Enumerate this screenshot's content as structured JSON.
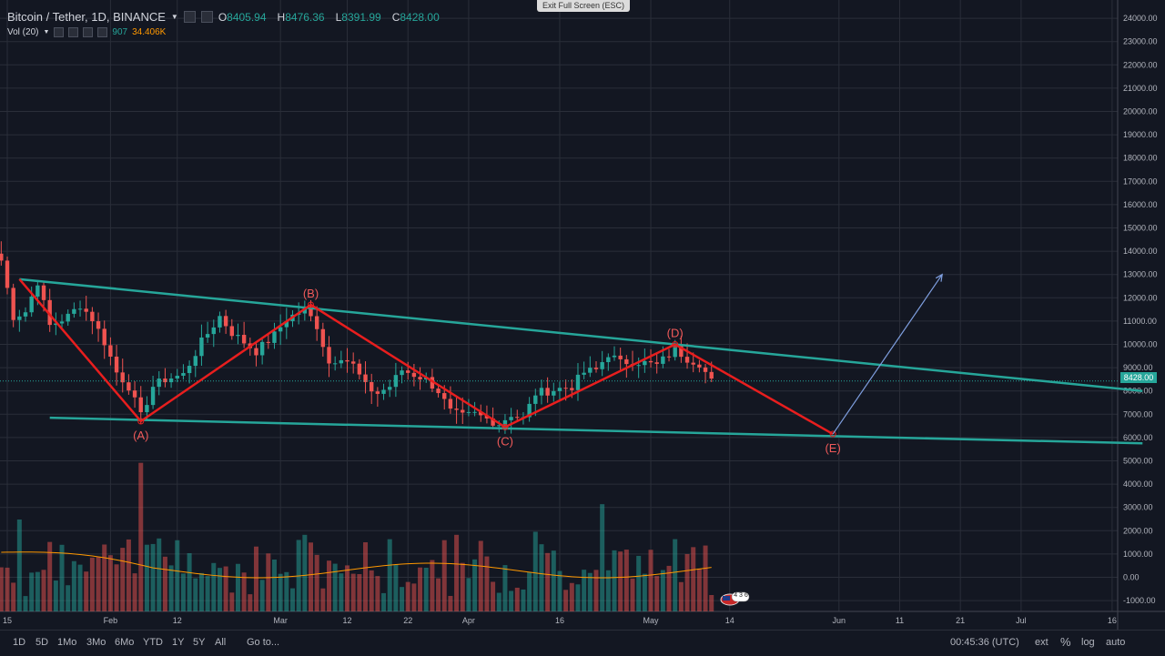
{
  "header": {
    "symbol": "Bitcoin / Tether, 1D, BINANCE",
    "o_label": "O",
    "o": "8405.94",
    "h_label": "H",
    "h": "8476.36",
    "l_label": "L",
    "l": "8391.99",
    "c_label": "C",
    "c": "8428.00",
    "vol_label": "Vol (20)",
    "vol_value": "907",
    "vol_ma": "34.406K",
    "exit_fullscreen": "Exit Full Screen (ESC)"
  },
  "current_price_label": "8428.00",
  "bottom_bar": {
    "ranges": [
      "1D",
      "5D",
      "1Mo",
      "3Mo",
      "6Mo",
      "YTD",
      "1Y",
      "5Y",
      "All"
    ],
    "goto": "Go to...",
    "clock": "00:45:36 (UTC)",
    "ext": "ext",
    "percent": "%",
    "log": "log",
    "auto": "auto"
  },
  "flag_badge": "4 3 6",
  "colors": {
    "background": "#131722",
    "grid": "#2a2e39",
    "up": "#26a69a",
    "down": "#ef5350",
    "trendline": "#26a69a",
    "wave": "#e81e1e",
    "projection": "#7f9fe0",
    "vol_ma": "#ff9800"
  },
  "chart_data": {
    "type": "candlestick",
    "title": "Bitcoin / Tether, 1D, BINANCE",
    "ylim": [
      -1500,
      24500
    ],
    "y_ticks": [
      24000,
      23000,
      22000,
      21000,
      20000,
      19000,
      18000,
      17000,
      16000,
      15000,
      14000,
      13000,
      12000,
      11000,
      10000,
      9000,
      8000,
      7000,
      6000,
      5000,
      4000,
      3000,
      2000,
      1000,
      0,
      -1000
    ],
    "y_tick_labels": [
      "24000.00",
      "23000.00",
      "22000.00",
      "21000.00",
      "20000.00",
      "19000.00",
      "18000.00",
      "17000.00",
      "16000.00",
      "15000.00",
      "14000.00",
      "13000.00",
      "12000.00",
      "11000.00",
      "10000.00",
      "9000.00",
      "8000.00",
      "7000.00",
      "6000.00",
      "5000.00",
      "4000.00",
      "3000.00",
      "2000.00",
      "1000.00",
      "0.00",
      "-1000.00"
    ],
    "x_ticks": [
      {
        "label": "15",
        "date": "2018-01-15"
      },
      {
        "label": "Feb",
        "date": "2018-02-01"
      },
      {
        "label": "12",
        "date": "2018-02-12"
      },
      {
        "label": "Mar",
        "date": "2018-03-01"
      },
      {
        "label": "12",
        "date": "2018-03-12"
      },
      {
        "label": "22",
        "date": "2018-03-22"
      },
      {
        "label": "Apr",
        "date": "2018-04-01"
      },
      {
        "label": "16",
        "date": "2018-04-16"
      },
      {
        "label": "May",
        "date": "2018-05-01"
      },
      {
        "label": "14",
        "date": "2018-05-14"
      },
      {
        "label": "Jun",
        "date": "2018-06-01"
      },
      {
        "label": "11",
        "date": "2018-06-11"
      },
      {
        "label": "21",
        "date": "2018-06-21"
      },
      {
        "label": "Jul",
        "date": "2018-07-01"
      },
      {
        "label": "16",
        "date": "2018-07-16"
      }
    ],
    "current_price": 8428.0,
    "price_anchors": [
      [
        "2018-01-14",
        13600
      ],
      [
        "2018-01-16",
        11200
      ],
      [
        "2018-01-18",
        11400
      ],
      [
        "2018-01-20",
        12700
      ],
      [
        "2018-01-22",
        10800
      ],
      [
        "2018-01-25",
        11200
      ],
      [
        "2018-01-27",
        11700
      ],
      [
        "2018-01-29",
        11100
      ],
      [
        "2018-01-31",
        10100
      ],
      [
        "2018-02-02",
        8800
      ],
      [
        "2018-02-04",
        8200
      ],
      [
        "2018-02-06",
        6900
      ],
      [
        "2018-02-08",
        8200
      ],
      [
        "2018-02-10",
        8500
      ],
      [
        "2018-02-13",
        8700
      ],
      [
        "2018-02-16",
        10100
      ],
      [
        "2018-02-19",
        11200
      ],
      [
        "2018-02-21",
        10500
      ],
      [
        "2018-02-23",
        10100
      ],
      [
        "2018-02-25",
        9700
      ],
      [
        "2018-02-28",
        10400
      ],
      [
        "2018-03-02",
        11100
      ],
      [
        "2018-03-05",
        11500
      ],
      [
        "2018-03-07",
        10800
      ],
      [
        "2018-03-09",
        9200
      ],
      [
        "2018-03-11",
        9500
      ],
      [
        "2018-03-13",
        9100
      ],
      [
        "2018-03-15",
        8200
      ],
      [
        "2018-03-17",
        7900
      ],
      [
        "2018-03-19",
        8200
      ],
      [
        "2018-03-21",
        8900
      ],
      [
        "2018-03-23",
        8700
      ],
      [
        "2018-03-25",
        8500
      ],
      [
        "2018-03-27",
        8000
      ],
      [
        "2018-03-29",
        7100
      ],
      [
        "2018-03-31",
        6900
      ],
      [
        "2018-04-02",
        7000
      ],
      [
        "2018-04-04",
        6800
      ],
      [
        "2018-04-06",
        6600
      ],
      [
        "2018-04-08",
        7000
      ],
      [
        "2018-04-10",
        6800
      ],
      [
        "2018-04-12",
        7900
      ],
      [
        "2018-04-14",
        8000
      ],
      [
        "2018-04-16",
        8100
      ],
      [
        "2018-04-18",
        8200
      ],
      [
        "2018-04-20",
        8800
      ],
      [
        "2018-04-22",
        8900
      ],
      [
        "2018-04-24",
        9600
      ],
      [
        "2018-04-26",
        9200
      ],
      [
        "2018-04-28",
        9300
      ],
      [
        "2018-04-30",
        9200
      ],
      [
        "2018-05-02",
        9100
      ],
      [
        "2018-05-05",
        9800
      ],
      [
        "2018-05-07",
        9400
      ],
      [
        "2018-05-09",
        9200
      ],
      [
        "2018-05-11",
        8400
      ]
    ],
    "volume": {
      "series_name": "Vol (20)",
      "max": 4900,
      "spikes": [
        [
          "2018-01-17",
          3000
        ],
        [
          "2018-02-06",
          4850
        ],
        [
          "2018-02-08",
          2200
        ],
        [
          "2018-02-14",
          1900
        ],
        [
          "2018-03-05",
          2500
        ],
        [
          "2018-03-30",
          2500
        ],
        [
          "2018-04-12",
          2600
        ],
        [
          "2018-04-23",
          3500
        ],
        [
          "2018-05-09",
          1400
        ]
      ]
    },
    "trendlines": [
      {
        "name": "upper",
        "from": [
          "2018-01-17",
          12800
        ],
        "to": [
          "2018-07-21",
          8000
        ]
      },
      {
        "name": "lower",
        "from": [
          "2018-01-22",
          6850
        ],
        "to": [
          "2018-07-21",
          5750
        ]
      }
    ],
    "wave": {
      "points": [
        {
          "date": "2018-01-17",
          "value": 12800,
          "label": ""
        },
        {
          "date": "2018-02-06",
          "value": 6700,
          "label": "(A)"
        },
        {
          "date": "2018-03-06",
          "value": 11700,
          "label": "(B)"
        },
        {
          "date": "2018-04-07",
          "value": 6450,
          "label": "(C)"
        },
        {
          "date": "2018-05-05",
          "value": 10000,
          "label": "(D)"
        },
        {
          "date": "2018-05-31",
          "value": 6150,
          "label": "(E)"
        }
      ],
      "projection": {
        "from": [
          "2018-05-31",
          6150
        ],
        "to": [
          "2018-06-18",
          13000
        ]
      }
    }
  }
}
